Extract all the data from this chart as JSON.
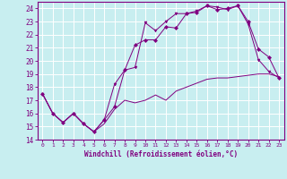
{
  "title": "",
  "xlabel": "Windchill (Refroidissement éolien,°C)",
  "ylabel": "",
  "xlim": [
    -0.5,
    23.5
  ],
  "ylim": [
    14,
    24.5
  ],
  "yticks": [
    14,
    15,
    16,
    17,
    18,
    19,
    20,
    21,
    22,
    23,
    24
  ],
  "xticks": [
    0,
    1,
    2,
    3,
    4,
    5,
    6,
    7,
    8,
    9,
    10,
    11,
    12,
    13,
    14,
    15,
    16,
    17,
    18,
    19,
    20,
    21,
    22,
    23
  ],
  "background_color": "#c8eef0",
  "grid_color": "#b0d8dc",
  "line_color": "#800080",
  "lines": [
    {
      "x": [
        0,
        1,
        2,
        3,
        4,
        5,
        6,
        7,
        8,
        9,
        10,
        11,
        12,
        13,
        14,
        15,
        16,
        17,
        18,
        19,
        20,
        21,
        22,
        23
      ],
      "y": [
        17.5,
        16.0,
        15.3,
        16.0,
        15.2,
        14.6,
        15.2,
        16.3,
        17.0,
        16.8,
        17.0,
        17.4,
        17.0,
        17.7,
        18.0,
        18.3,
        18.6,
        18.7,
        18.7,
        18.8,
        18.9,
        19.0,
        19.0,
        18.8
      ],
      "marker": null
    },
    {
      "x": [
        0,
        1,
        2,
        3,
        4,
        5,
        6,
        7,
        8,
        9,
        10,
        11,
        12,
        13,
        14,
        15,
        16,
        17,
        18,
        19,
        20,
        21,
        22,
        23
      ],
      "y": [
        17.5,
        16.0,
        15.3,
        16.0,
        15.2,
        14.6,
        15.5,
        16.5,
        19.3,
        21.2,
        21.6,
        21.6,
        22.6,
        22.5,
        23.6,
        23.7,
        24.2,
        23.9,
        24.0,
        24.2,
        23.0,
        20.9,
        20.3,
        18.7
      ],
      "marker": "D"
    },
    {
      "x": [
        0,
        1,
        2,
        3,
        4,
        5,
        6,
        7,
        8,
        9,
        10,
        11,
        12,
        13,
        14,
        15,
        16,
        17,
        18,
        19,
        20,
        21,
        22,
        23
      ],
      "y": [
        17.5,
        16.0,
        15.3,
        16.0,
        15.2,
        14.6,
        15.5,
        18.2,
        19.3,
        19.5,
        22.9,
        22.3,
        23.0,
        23.6,
        23.6,
        23.8,
        24.2,
        24.1,
        23.9,
        24.2,
        22.8,
        20.1,
        19.2,
        18.7
      ],
      "marker": "v"
    }
  ]
}
